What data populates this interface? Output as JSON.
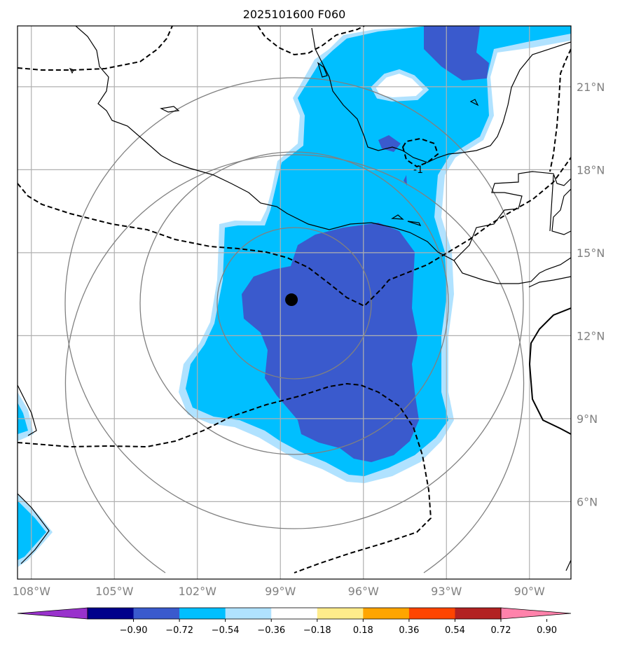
{
  "title": "2025101600 F060",
  "map": {
    "lon_range": [
      -108.5,
      -88.5
    ],
    "lat_range": [
      3.2,
      23.2
    ],
    "lon_ticks": [
      {
        "value": -108,
        "label": "108°W"
      },
      {
        "value": -105,
        "label": "105°W"
      },
      {
        "value": -102,
        "label": "102°W"
      },
      {
        "value": -99,
        "label": "99°W"
      },
      {
        "value": -96,
        "label": "96°W"
      },
      {
        "value": -93,
        "label": "93°W"
      },
      {
        "value": -90,
        "label": "90°W"
      }
    ],
    "lat_ticks": [
      {
        "value": 6,
        "label": "6°N"
      },
      {
        "value": 9,
        "label": "9°N"
      },
      {
        "value": 12,
        "label": "12°N"
      },
      {
        "value": 15,
        "label": "15°N"
      },
      {
        "value": 18,
        "label": "18°N"
      },
      {
        "value": 21,
        "label": "21°N"
      }
    ],
    "storm_center": {
      "lon": -98.6,
      "lat": 13.3
    },
    "range_rings": "concentric distance circles around storm center",
    "contour_label": "-1"
  },
  "colorbar": {
    "boundaries": [
      "−0.90",
      "−0.72",
      "−0.54",
      "−0.36",
      "−0.18",
      "0.18",
      "0.36",
      "0.54",
      "0.72",
      "0.90"
    ],
    "colors": [
      "#9932CC",
      "#00008B",
      "#3A5ACD",
      "#00BFFF",
      "#B0E2FF",
      "#FFFFFF",
      "#FFEC8B",
      "#FFA500",
      "#FF4500",
      "#B22222",
      "#FF82AB"
    ]
  },
  "colors": {
    "level_strong": "#3A5ACD",
    "level_mid": "#00BFFF",
    "level_weak": "#B0E2FF",
    "grid": "#B0B0B0",
    "ring": "#808080"
  }
}
